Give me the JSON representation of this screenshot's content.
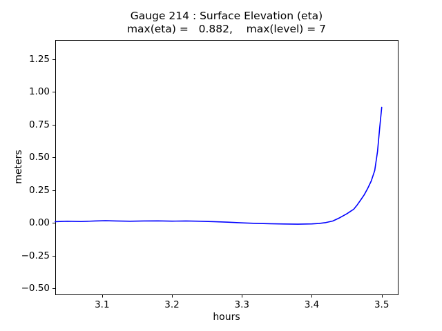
{
  "chart_data": {
    "type": "line",
    "title": "Gauge 214 : Surface Elevation (eta)",
    "subtitle": "max(eta) =   0.882,    max(level) = 7",
    "gauge_number": 214,
    "max_eta": 0.882,
    "max_level": 7,
    "xlabel": "hours",
    "ylabel": "meters",
    "xlim": [
      3.033,
      3.523
    ],
    "ylim": [
      -0.545,
      1.395
    ],
    "grid": false,
    "legend": null,
    "xticks": [
      3.1,
      3.2,
      3.3,
      3.4,
      3.5
    ],
    "xtick_labels": [
      "3.1",
      "3.2",
      "3.3",
      "3.4",
      "3.5"
    ],
    "yticks": [
      -0.5,
      -0.25,
      0.0,
      0.25,
      0.5,
      0.75,
      1.0,
      1.25
    ],
    "ytick_labels": [
      "−0.50",
      "−0.25",
      "0.00",
      "0.25",
      "0.50",
      "0.75",
      "1.00",
      "1.25"
    ],
    "line_color": "#0000ff",
    "axis_color": "#000000",
    "background_color": "#ffffff",
    "series": [
      {
        "name": "eta",
        "x": [
          3.033,
          3.05,
          3.07,
          3.09,
          3.105,
          3.12,
          3.14,
          3.16,
          3.18,
          3.2,
          3.22,
          3.24,
          3.26,
          3.28,
          3.3,
          3.32,
          3.34,
          3.36,
          3.38,
          3.4,
          3.41,
          3.42,
          3.43,
          3.44,
          3.45,
          3.46,
          3.465,
          3.47,
          3.475,
          3.48,
          3.485,
          3.49,
          3.494,
          3.497,
          3.5
        ],
        "y": [
          0.01,
          0.013,
          0.011,
          0.015,
          0.017,
          0.015,
          0.013,
          0.015,
          0.016,
          0.014,
          0.015,
          0.013,
          0.01,
          0.006,
          0.001,
          -0.003,
          -0.006,
          -0.008,
          -0.009,
          -0.007,
          -0.004,
          0.003,
          0.015,
          0.04,
          0.07,
          0.105,
          0.138,
          0.176,
          0.215,
          0.264,
          0.32,
          0.4,
          0.545,
          0.72,
          0.882
        ]
      }
    ]
  }
}
